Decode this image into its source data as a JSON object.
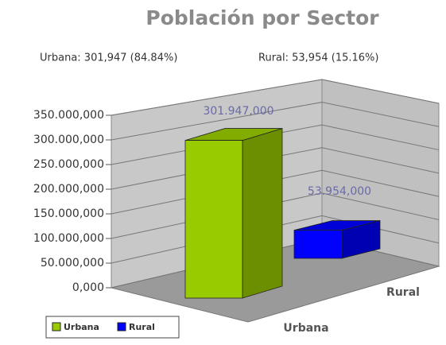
{
  "chart_data": {
    "type": "bar3d",
    "title": "Población por Sector",
    "annotations": [
      "Urbana: 301,947 (84.84%)",
      "Rural: 53,954 (15.16%)"
    ],
    "categories": [
      "Urbana",
      "Rural"
    ],
    "values": [
      301947,
      53954
    ],
    "value_labels": [
      "301.947,000",
      "53.954,000"
    ],
    "colors": [
      "#99cc00",
      "#0000ff"
    ],
    "ylim": [
      0,
      350000
    ],
    "yticks": [
      {
        "value": 0,
        "label": "0,000"
      },
      {
        "value": 50000,
        "label": "50.000,000"
      },
      {
        "value": 100000,
        "label": "100.000,000"
      },
      {
        "value": 150000,
        "label": "150.000,000"
      },
      {
        "value": 200000,
        "label": "200.000,000"
      },
      {
        "value": 250000,
        "label": "250.000,000"
      },
      {
        "value": 300000,
        "label": "300.000,000"
      },
      {
        "value": 350000,
        "label": "350.000,000"
      }
    ],
    "grid": true
  }
}
